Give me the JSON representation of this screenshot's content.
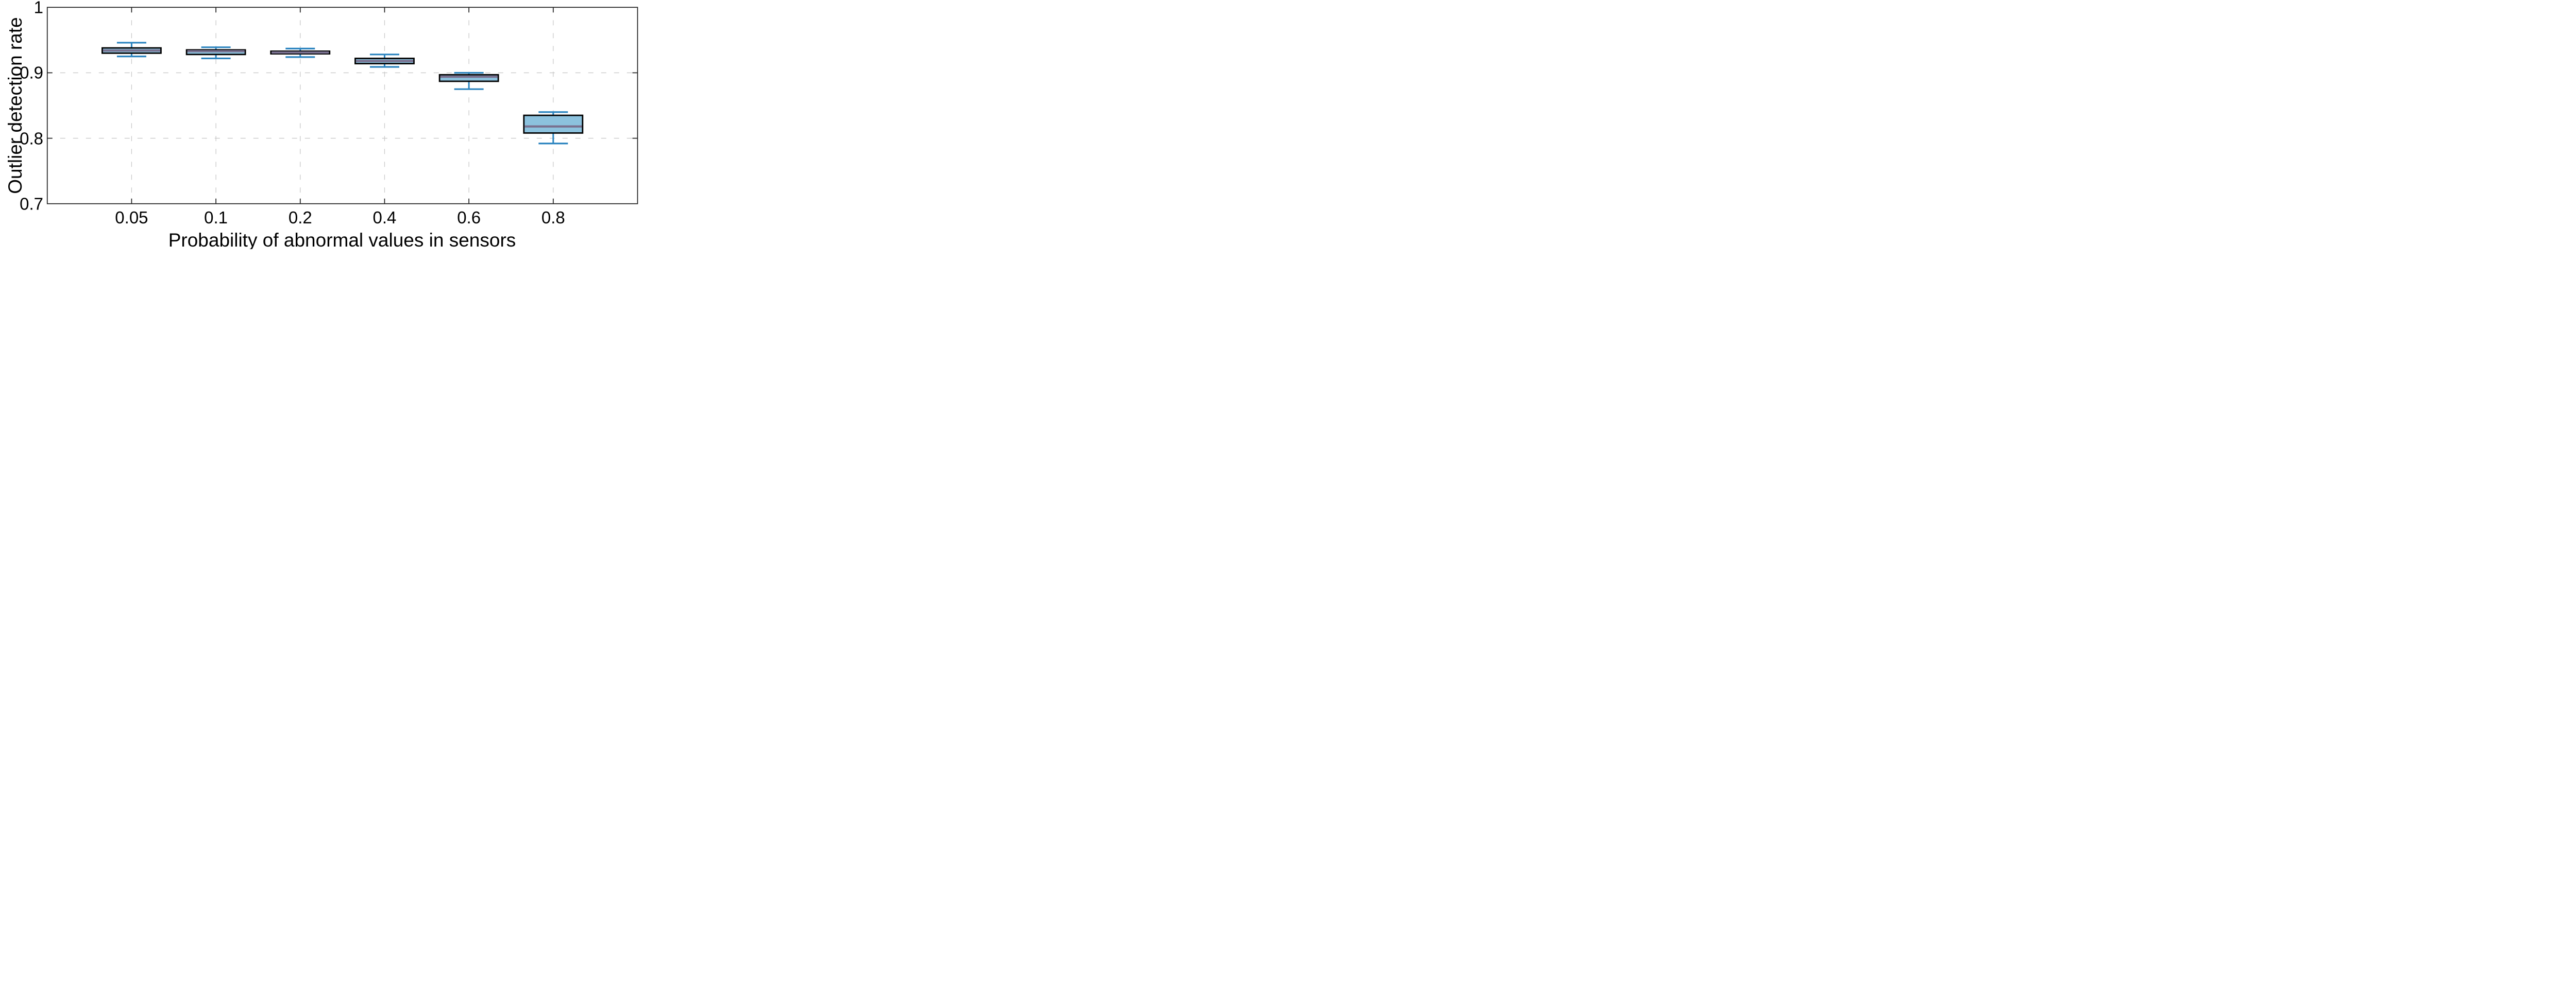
{
  "chart_data": {
    "type": "box",
    "title": "",
    "xlabel": "Probability of abnormal values in sensors",
    "ylabel": "Outlier detection rate",
    "categories": [
      "0.05",
      "0.1",
      "0.2",
      "0.4",
      "0.6",
      "0.8"
    ],
    "series": [
      {
        "category": "0.05",
        "whisker_low": 0.925,
        "q1": 0.93,
        "median": 0.934,
        "q3": 0.938,
        "whisker_high": 0.946
      },
      {
        "category": "0.1",
        "whisker_low": 0.922,
        "q1": 0.928,
        "median": 0.933,
        "q3": 0.935,
        "whisker_high": 0.939
      },
      {
        "category": "0.2",
        "whisker_low": 0.924,
        "q1": 0.929,
        "median": 0.931,
        "q3": 0.933,
        "whisker_high": 0.937
      },
      {
        "category": "0.4",
        "whisker_low": 0.909,
        "q1": 0.914,
        "median": 0.918,
        "q3": 0.922,
        "whisker_high": 0.928
      },
      {
        "category": "0.6",
        "whisker_low": 0.875,
        "q1": 0.887,
        "median": 0.894,
        "q3": 0.897,
        "whisker_high": 0.9
      },
      {
        "category": "0.8",
        "whisker_low": 0.792,
        "q1": 0.808,
        "median": 0.818,
        "q3": 0.835,
        "whisker_high": 0.84
      }
    ],
    "ylim": [
      0.7,
      1.0
    ],
    "yticks": [
      {
        "label": "1",
        "value": 1.0
      },
      {
        "label": "0.9",
        "value": 0.9
      },
      {
        "label": "0.8",
        "value": 0.8
      },
      {
        "label": "0.7",
        "value": 0.7
      }
    ],
    "ygridlines": [
      0.9,
      0.8
    ],
    "grid": "dashed",
    "legend_position": "none",
    "colors": {
      "box_fill": "#8CC2DE",
      "box_edge": "#000000",
      "median": "#79708F",
      "whisker": "#2B84BF",
      "grid": "#C9C9C9",
      "axis": "#1F1F1F",
      "text": "#000000"
    }
  }
}
